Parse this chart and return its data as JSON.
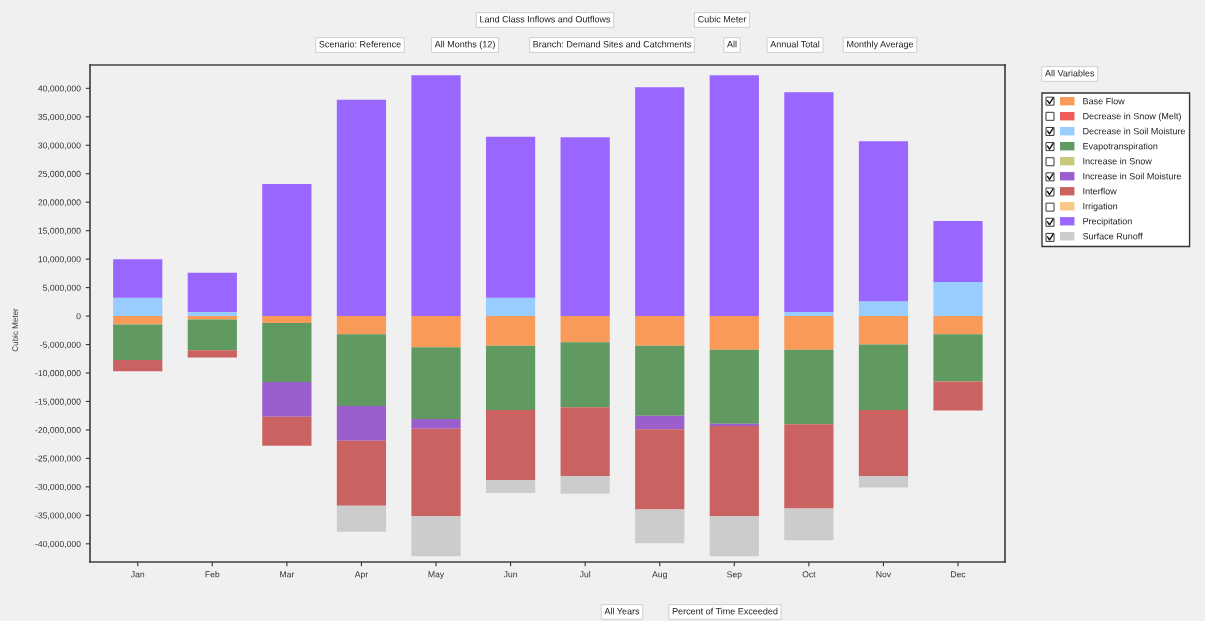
{
  "chart_data": {
    "type": "bar",
    "stacked": true,
    "title": "Land Class Inflows and Outflows",
    "ylabel": "Cubic Meter",
    "categories": [
      "Jan",
      "Feb",
      "Mar",
      "Apr",
      "May",
      "Jun",
      "Jul",
      "Aug",
      "Sep",
      "Oct",
      "Nov",
      "Dec"
    ],
    "series": [
      {
        "name": "Base Flow",
        "color": "#f99a59",
        "values": [
          -1500000,
          -600000,
          -1200000,
          -3200000,
          -5500000,
          -5200000,
          -4600000,
          -5200000,
          -5900000,
          -5900000,
          -5000000,
          -3200000
        ]
      },
      {
        "name": "Decrease in Snow (Melt)",
        "color": "#f05a5a",
        "values": [
          null,
          null,
          null,
          null,
          null,
          null,
          null,
          null,
          null,
          null,
          null,
          null
        ]
      },
      {
        "name": "Decrease in Soil Moisture",
        "color": "#99ccff",
        "values": [
          3200000,
          700000,
          null,
          null,
          null,
          3200000,
          null,
          null,
          null,
          700000,
          2600000,
          6000000
        ]
      },
      {
        "name": "Evapotranspiration",
        "color": "#619a61",
        "values": [
          -6200000,
          -5400000,
          -10400000,
          -12600000,
          -12600000,
          -11300000,
          -11400000,
          -12300000,
          -13000000,
          -13100000,
          -11500000,
          -8300000
        ]
      },
      {
        "name": "Increase in Snow",
        "color": "#c8c87a",
        "values": [
          null,
          null,
          null,
          null,
          null,
          null,
          null,
          null,
          null,
          null,
          null,
          null
        ]
      },
      {
        "name": "Increase in Soil Moisture",
        "color": "#9a5fcc",
        "values": [
          null,
          null,
          -6100000,
          -6100000,
          -1700000,
          null,
          null,
          -2400000,
          -400000,
          null,
          null,
          null
        ]
      },
      {
        "name": "Interflow",
        "color": "#cb6262",
        "values": [
          -2000000,
          -1300000,
          -5100000,
          -11400000,
          -15300000,
          -12300000,
          -12100000,
          -14100000,
          -15800000,
          -14800000,
          -11600000,
          -5100000
        ]
      },
      {
        "name": "Irrigation",
        "color": "#f8c888",
        "values": [
          null,
          null,
          null,
          null,
          null,
          null,
          null,
          null,
          null,
          null,
          null,
          null
        ]
      },
      {
        "name": "Precipitation",
        "color": "#9966ff",
        "values": [
          6800000,
          6900000,
          23200000,
          38000000,
          42300000,
          28300000,
          31400000,
          40200000,
          42300000,
          38600000,
          28100000,
          10700000
        ]
      },
      {
        "name": "Surface Runoff",
        "color": "#cccccc",
        "values": [
          null,
          null,
          null,
          -4600000,
          -7100000,
          -2300000,
          -3100000,
          -5900000,
          -7100000,
          -5600000,
          -2000000,
          null
        ]
      }
    ],
    "ylim": [
      -43200000,
      44100000
    ],
    "yticks": [
      {
        "value": -40000000,
        "label": "-40,000,000"
      },
      {
        "value": -35000000,
        "label": "-35,000,000"
      },
      {
        "value": -30000000,
        "label": "-30,000,000"
      },
      {
        "value": -25000000,
        "label": "-25,000,000"
      },
      {
        "value": -20000000,
        "label": "-20,000,000"
      },
      {
        "value": -15000000,
        "label": "-15,000,000"
      },
      {
        "value": -10000000,
        "label": "-10,000,000"
      },
      {
        "value": -5000000,
        "label": "-5,000,000"
      },
      0,
      {
        "value": 5000000,
        "label": "5,000,000"
      },
      {
        "value": 10000000,
        "label": "10,000,000"
      },
      {
        "value": 15000000,
        "label": "15,000,000"
      },
      {
        "value": 20000000,
        "label": "20,000,000"
      },
      {
        "value": 25000000,
        "label": "25,000,000"
      },
      {
        "value": 30000000,
        "label": "30,000,000"
      },
      {
        "value": 35000000,
        "label": "35,000,000"
      },
      {
        "value": 40000000,
        "label": "40,000,000"
      }
    ],
    "legend": "right",
    "annotations": [
      "Cubic Meter",
      "Scenario: Reference",
      "All Months (12)",
      "Branch: Demand Sites and Catchments",
      "All",
      "Annual Total",
      "Monthly Average",
      "All Variables",
      "All Years",
      "Percent of Time Exceeded"
    ]
  }
}
